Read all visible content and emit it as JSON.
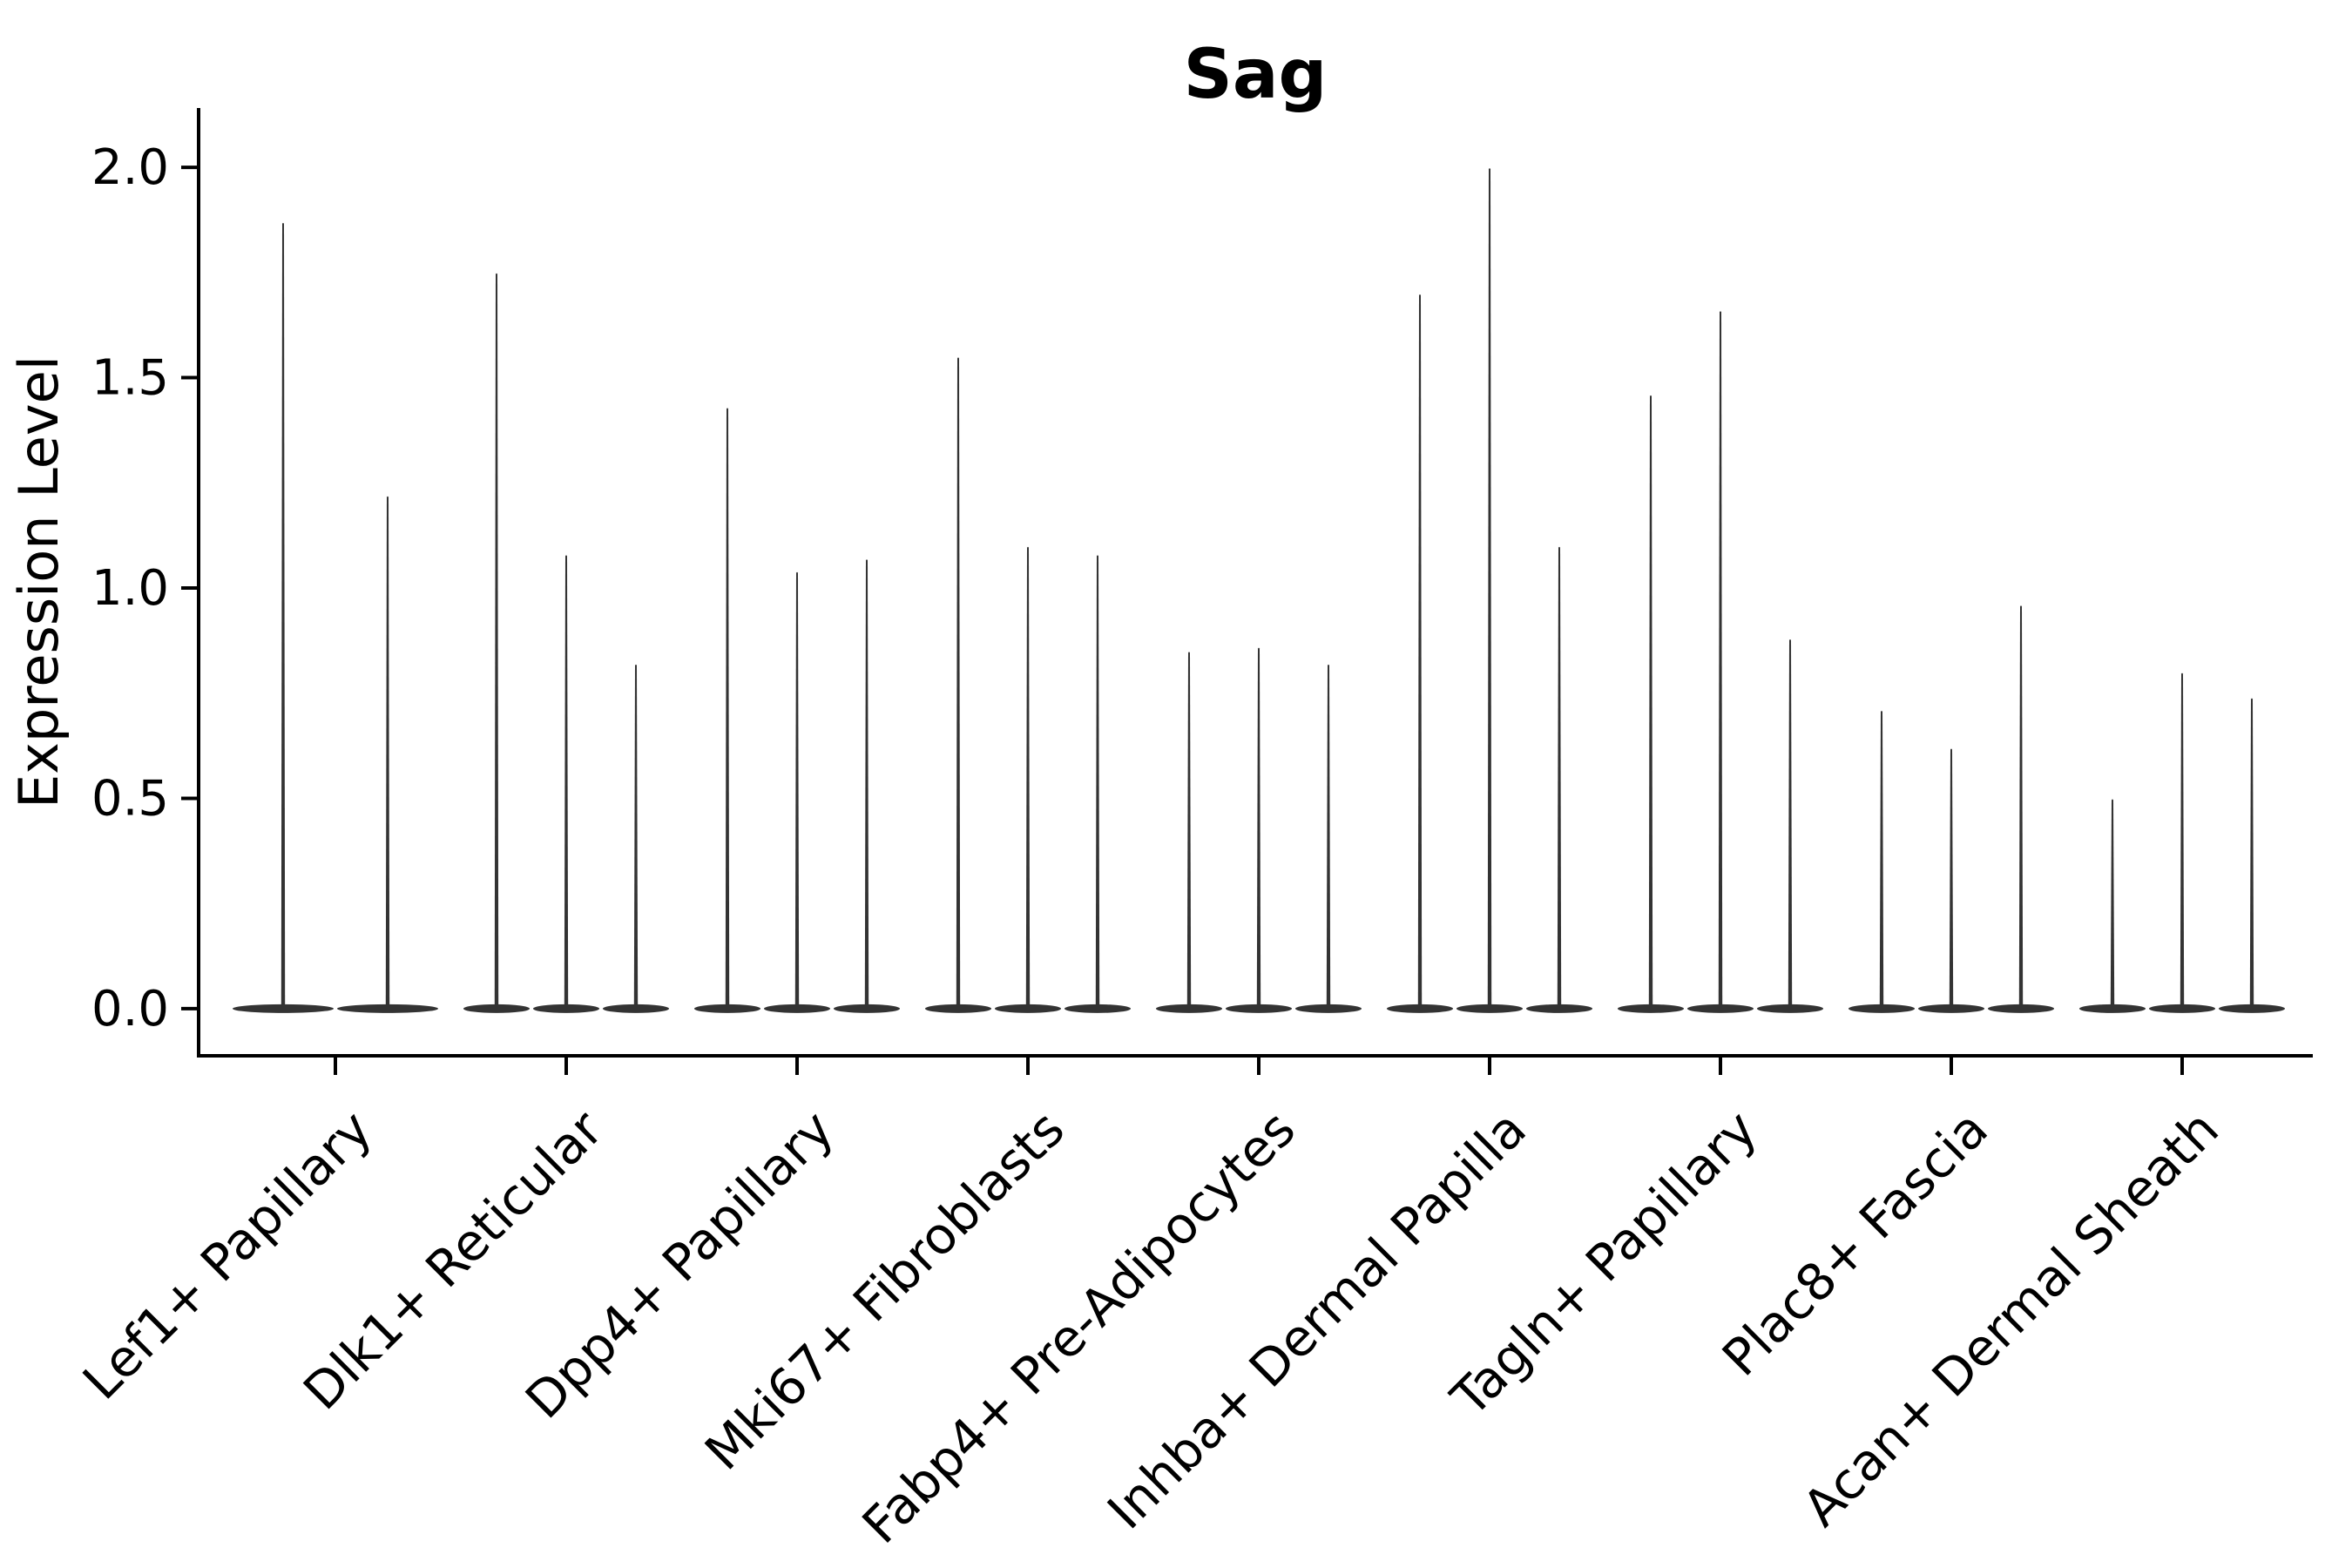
{
  "figure": {
    "title": "Sag",
    "background": "#ffffff"
  },
  "chart_data": {
    "type": "violin",
    "title": "Sag",
    "xlabel": "",
    "ylabel": "Expression Level",
    "ylim": [
      -0.112,
      2.141
    ],
    "yticks": [
      0.0,
      0.5,
      1.0,
      1.5,
      2.0
    ],
    "ytick_labels": [
      "0.0",
      "0.5",
      "1.0",
      "1.5",
      "2.0"
    ],
    "grid": false,
    "legend": "none",
    "violin_color": "#333333",
    "axis_color": "#000000",
    "categories": [
      "Lef1+ Papillary",
      "Dlk1+ Reticular",
      "Dpp4+ Papillary",
      "Mki67+ Fibroblasts",
      "Fabp4+ Pre-Adipocytes",
      "Inhba+ Dermal Papilla",
      "Tagln+ Papillary",
      "Plac8+ Fascia",
      "Acan+ Dermal Sheath"
    ],
    "groups": [
      {
        "label": "Lef1+ Papillary",
        "violin_max_values": [
          1.87,
          1.22
        ]
      },
      {
        "label": "Dlk1+ Reticular",
        "violin_max_values": [
          1.75,
          1.08,
          0.82
        ]
      },
      {
        "label": "Dpp4+ Papillary",
        "violin_max_values": [
          1.43,
          1.04,
          1.07
        ]
      },
      {
        "label": "Mki67+ Fibroblasts",
        "violin_max_values": [
          1.55,
          1.1,
          1.08
        ]
      },
      {
        "label": "Fabp4+ Pre-Adipocytes",
        "violin_max_values": [
          0.85,
          0.86,
          0.82
        ]
      },
      {
        "label": "Inhba+ Dermal Papilla",
        "violin_max_values": [
          1.7,
          2.0,
          1.1
        ]
      },
      {
        "label": "Tagln+ Papillary",
        "violin_max_values": [
          1.46,
          1.66,
          0.88
        ]
      },
      {
        "label": "Plac8+ Fascia",
        "violin_max_values": [
          0.71,
          0.62,
          0.96
        ]
      },
      {
        "label": "Acan+ Dermal Sheath",
        "violin_max_values": [
          0.5,
          0.8,
          0.74
        ]
      }
    ],
    "violin_baseline_value": 0.0
  }
}
